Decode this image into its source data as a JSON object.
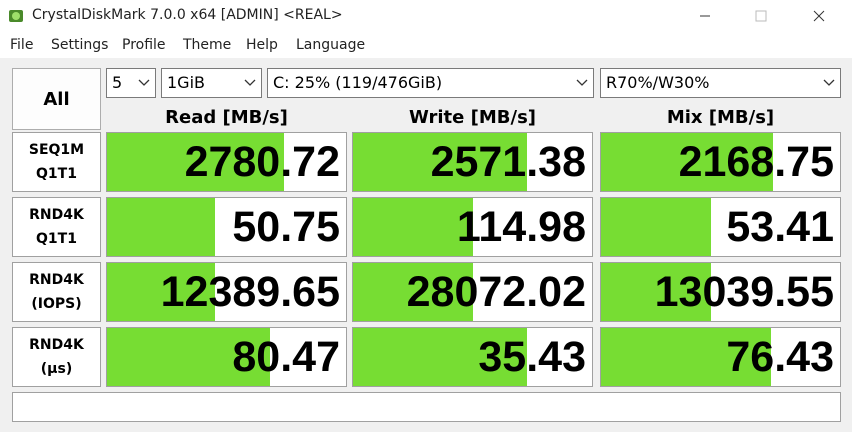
{
  "window": {
    "title": "CrystalDiskMark 7.0.0 x64 [ADMIN] <REAL>"
  },
  "menu": [
    "File",
    "Settings",
    "Profile",
    "Theme",
    "Help",
    "Language"
  ],
  "controls": {
    "all_button": "All",
    "count": "5",
    "size": "1GiB",
    "drive": "C: 25% (119/476GiB)",
    "profile": "R70%/W30%"
  },
  "columns": [
    "Read [MB/s]",
    "Write [MB/s]",
    "Mix [MB/s]"
  ],
  "rows": [
    {
      "label": [
        "SEQ1M",
        "Q1T1"
      ],
      "values": [
        2780.72,
        2571.38,
        2168.75
      ]
    },
    {
      "label": [
        "RND4K",
        "Q1T1"
      ],
      "values": [
        50.75,
        114.98,
        53.41
      ]
    },
    {
      "label": [
        "RND4K",
        "(IOPS)"
      ],
      "values": [
        12389.65,
        28072.02,
        13039.55
      ]
    },
    {
      "label": [
        "RND4K",
        "(µs)"
      ],
      "values": [
        80.47,
        35.43,
        76.43
      ]
    }
  ]
}
